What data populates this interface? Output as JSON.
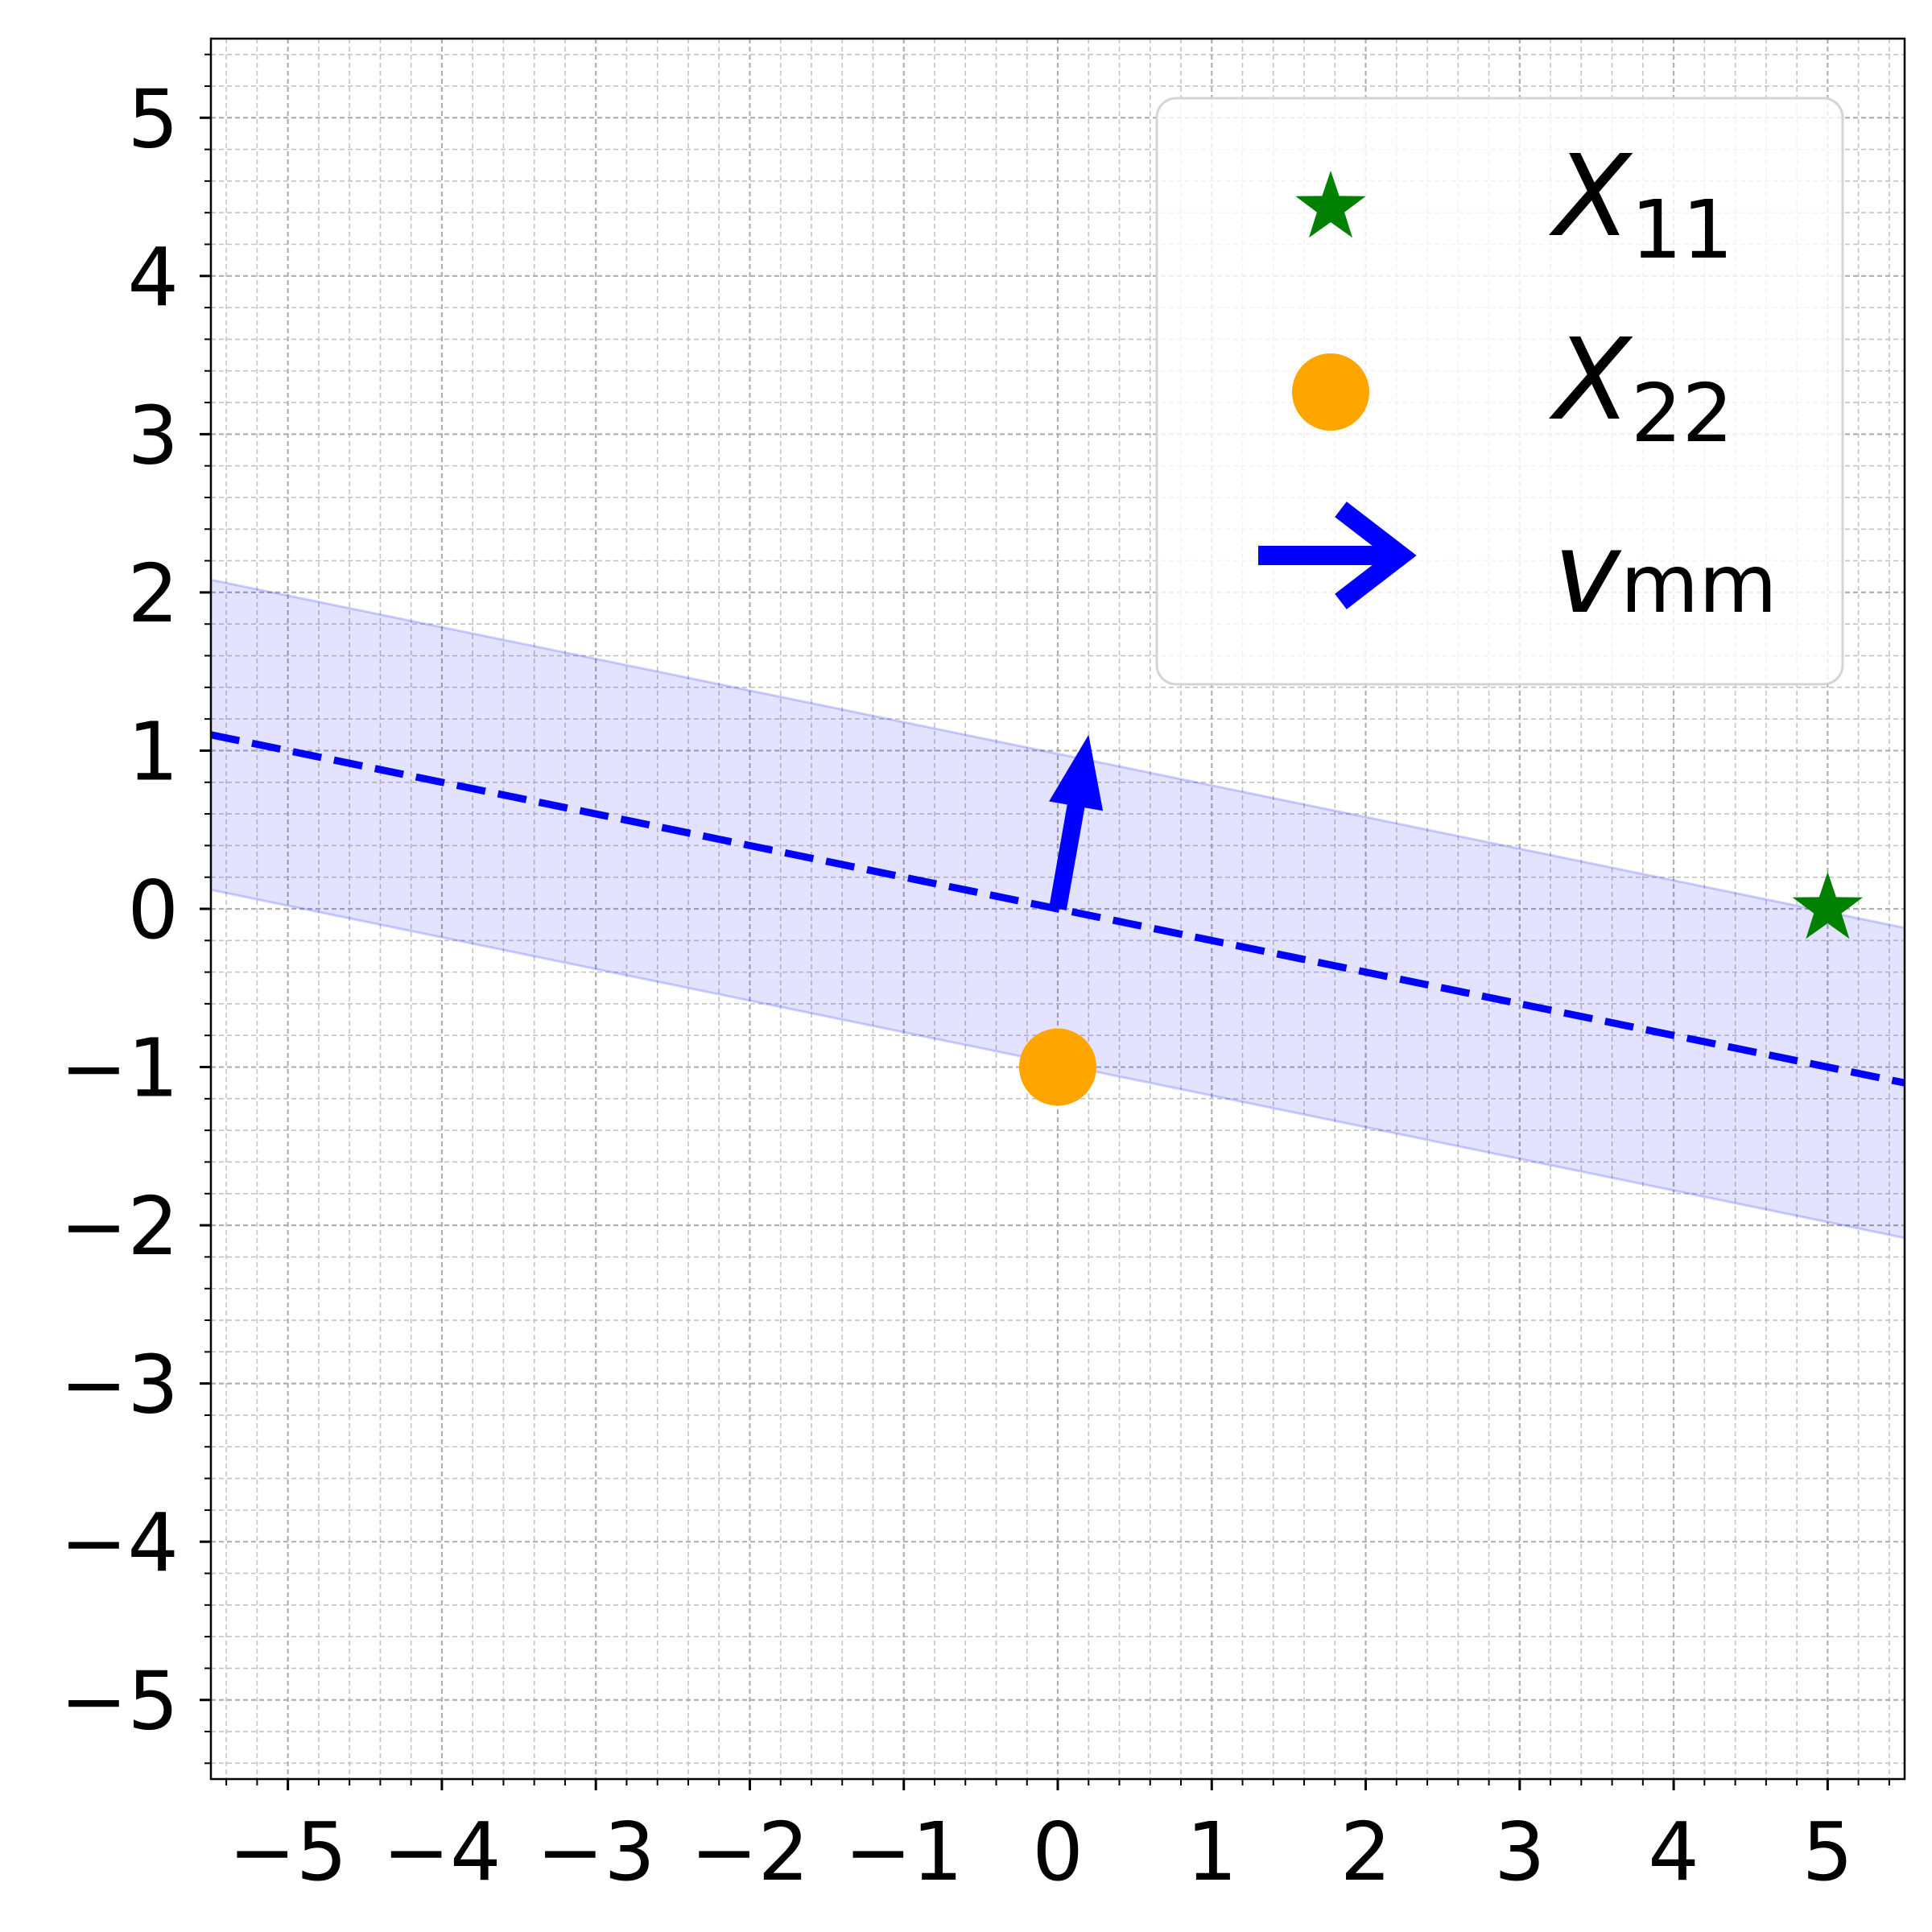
{
  "chart_data": {
    "type": "scatter",
    "xlim": [
      -5.5,
      5.5
    ],
    "ylim": [
      -5.5,
      5.5
    ],
    "xticks": [
      -5,
      -4,
      -3,
      -2,
      -1,
      0,
      1,
      2,
      3,
      4,
      5
    ],
    "yticks": [
      -5,
      -4,
      -3,
      -2,
      -1,
      0,
      1,
      2,
      3,
      4,
      5
    ],
    "xtick_labels": [
      "−5",
      "−4",
      "−3",
      "−2",
      "−1",
      "0",
      "1",
      "2",
      "3",
      "4",
      "5"
    ],
    "ytick_labels": [
      "−5",
      "−4",
      "−3",
      "−2",
      "−1",
      "0",
      "1",
      "2",
      "3",
      "4",
      "5"
    ],
    "minor_tick_step": 0.2,
    "grid": "major and minor, dashed",
    "legend_placement": "top-right",
    "series": [
      {
        "name": "X11",
        "name_base": "X",
        "name_sub": "11",
        "marker": "star",
        "color": "#008000",
        "points": [
          [
            5,
            0
          ]
        ]
      },
      {
        "name": "X22",
        "name_base": "X",
        "name_sub": "22",
        "marker": "circle",
        "color": "#FFA500",
        "points": [
          [
            0,
            -1
          ]
        ]
      },
      {
        "name": "vmm",
        "name_base": "v",
        "name_sub": "mm",
        "marker": "arrow",
        "color": "#0000FF",
        "from": [
          0,
          0
        ],
        "to": [
          0.2,
          1.1
        ]
      }
    ],
    "decision_line": {
      "style": "dashed",
      "color": "#0000FF",
      "points": [
        [
          -5.5,
          1.1
        ],
        [
          5.5,
          -1.1
        ]
      ]
    },
    "margin_band": {
      "color": "#0000FF",
      "opacity": 0.11,
      "upper": [
        [
          -5.5,
          2.08
        ],
        [
          5.5,
          -0.12
        ]
      ],
      "lower": [
        [
          -5.5,
          0.12
        ],
        [
          5.5,
          -2.08
        ]
      ]
    }
  }
}
